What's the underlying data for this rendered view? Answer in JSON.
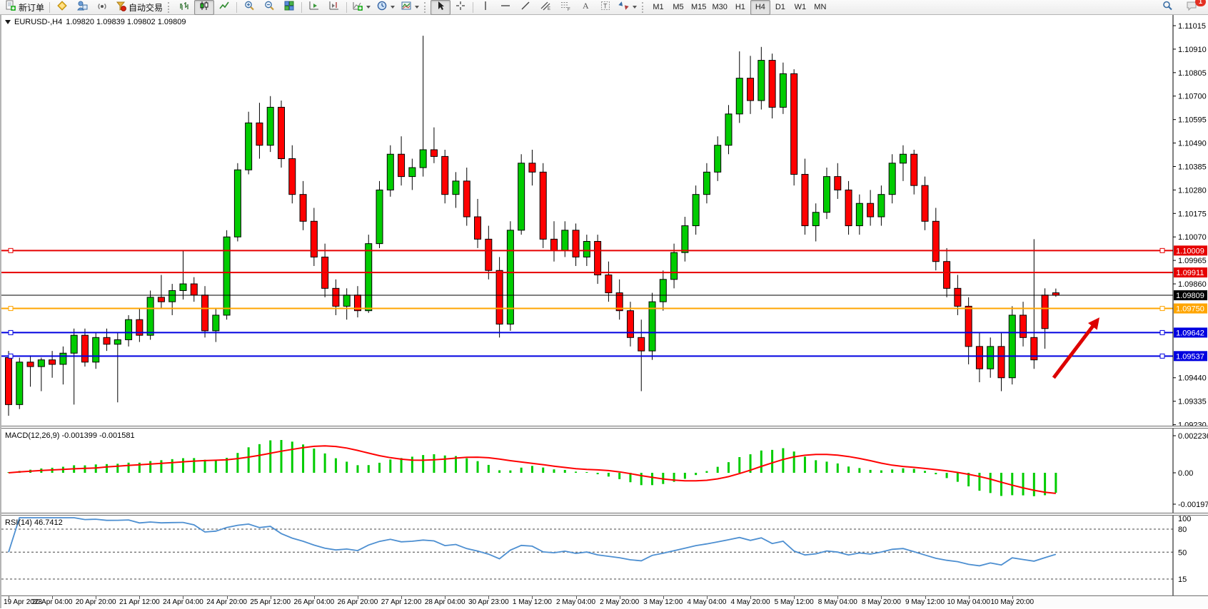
{
  "toolbar": {
    "new_order_label": "新订单",
    "autotrading_label": "自动交易",
    "timeframes": [
      "M1",
      "M5",
      "M15",
      "M30",
      "H1",
      "H4",
      "D1",
      "W1",
      "MN"
    ],
    "active_timeframe": "H4",
    "notification_count": "1"
  },
  "chart": {
    "symbol_period": "EURUSD-,H4",
    "quotes": "1.09820 1.09839 1.09802 1.09809"
  },
  "macd": {
    "label": "MACD(12,26,9) -0.001399 -0.001581",
    "axis": [
      "0.002236",
      "0.00",
      "-0.001971"
    ],
    "histogram_color": "#00cc00",
    "signal_color": "#ff0000"
  },
  "rsi": {
    "label": "RSI(14) 46.7412",
    "levels": [
      "100",
      "80",
      "50",
      "15"
    ],
    "line_color": "#4d8fd1"
  },
  "chart_data": {
    "type": "candlestick",
    "symbol": "EURUSD-",
    "timeframe": "H4",
    "bull_color": "#00cc00",
    "bear_color": "#ff0000",
    "price_ticks": [
      "1.11015",
      "1.10910",
      "1.10805",
      "1.10700",
      "1.10595",
      "1.10490",
      "1.10385",
      "1.10280",
      "1.10175",
      "1.10070",
      "1.09965",
      "1.09860",
      "1.09440",
      "1.09335",
      "1.09230"
    ],
    "hlines": [
      {
        "price": 1.10009,
        "label": "1.10009",
        "color": "#e60000",
        "width": 2,
        "handles": true
      },
      {
        "price": 1.09911,
        "label": "1.09911",
        "color": "#e60000",
        "width": 2,
        "handles": false
      },
      {
        "price": 1.0975,
        "label": "1.09750",
        "color": "#ffa500",
        "width": 2,
        "handles": true
      },
      {
        "price": 1.09642,
        "label": "1.09642",
        "color": "#0000e0",
        "width": 2,
        "handles": true
      },
      {
        "price": 1.09537,
        "label": "1.09537",
        "color": "#0000e0",
        "width": 2,
        "handles": true
      }
    ],
    "current_price": {
      "price": 1.09809,
      "label": "1.09809",
      "color": "#000000"
    },
    "annotation_arrow": {
      "color": "#dd0000",
      "tail": {
        "bar": 95.8,
        "price": 1.0944
      },
      "head": {
        "bar": 100.0,
        "price": 1.0971
      }
    },
    "x_labels": [
      "19 Apr 2023",
      "20 Apr 04:00",
      "20 Apr 20:00",
      "21 Apr 12:00",
      "24 Apr 04:00",
      "24 Apr 20:00",
      "25 Apr 12:00",
      "26 Apr 04:00",
      "26 Apr 20:00",
      "27 Apr 12:00",
      "28 Apr 04:00",
      "30 Apr 23:00",
      "1 May 12:00",
      "2 May 04:00",
      "2 May 20:00",
      "3 May 12:00",
      "4 May 04:00",
      "4 May 20:00",
      "5 May 12:00",
      "8 May 04:00",
      "8 May 20:00",
      "9 May 12:00",
      "10 May 04:00",
      "10 May 20:00"
    ],
    "candles": [
      [
        1.0953,
        1.0956,
        1.0927,
        1.0932
      ],
      [
        1.0932,
        1.0953,
        1.093,
        1.0951
      ],
      [
        1.0951,
        1.0954,
        1.094,
        1.0949
      ],
      [
        1.0949,
        1.0953,
        1.0938,
        1.0952
      ],
      [
        1.0952,
        1.0956,
        1.0944,
        1.095
      ],
      [
        1.095,
        1.0958,
        1.0941,
        1.0955
      ],
      [
        1.0955,
        1.0966,
        1.0932,
        1.0963
      ],
      [
        1.0963,
        1.0966,
        1.0949,
        1.0951
      ],
      [
        1.0951,
        1.0964,
        1.0948,
        1.0962
      ],
      [
        1.0962,
        1.0966,
        1.0956,
        1.0959
      ],
      [
        1.0959,
        1.0964,
        1.0933,
        1.0961
      ],
      [
        1.0961,
        1.0972,
        1.0958,
        1.097
      ],
      [
        1.097,
        1.0975,
        1.096,
        1.0963
      ],
      [
        1.0963,
        1.0983,
        1.0961,
        1.098
      ],
      [
        1.098,
        1.099,
        1.0975,
        1.0978
      ],
      [
        1.0978,
        1.0986,
        1.0972,
        1.0983
      ],
      [
        1.0983,
        1.1001,
        1.0979,
        1.0986
      ],
      [
        1.0986,
        1.0989,
        1.0978,
        1.0981
      ],
      [
        1.0981,
        1.0985,
        1.0962,
        1.0965
      ],
      [
        1.0965,
        1.0975,
        1.096,
        1.0972
      ],
      [
        1.0972,
        1.101,
        1.097,
        1.1007
      ],
      [
        1.1007,
        1.104,
        1.1005,
        1.1037
      ],
      [
        1.1037,
        1.1063,
        1.1035,
        1.1058
      ],
      [
        1.1058,
        1.1067,
        1.1042,
        1.1048
      ],
      [
        1.1048,
        1.107,
        1.1045,
        1.1065
      ],
      [
        1.1065,
        1.1068,
        1.1038,
        1.1042
      ],
      [
        1.1042,
        1.1048,
        1.1022,
        1.1026
      ],
      [
        1.1026,
        1.1032,
        1.101,
        1.1014
      ],
      [
        1.1014,
        1.102,
        1.0994,
        1.0998
      ],
      [
        1.0998,
        1.1004,
        1.098,
        1.0984
      ],
      [
        1.0984,
        1.0988,
        1.0972,
        1.0976
      ],
      [
        1.0976,
        1.0984,
        1.097,
        1.0981
      ],
      [
        1.0981,
        1.0985,
        1.0971,
        1.0974
      ],
      [
        1.0974,
        1.1008,
        1.0973,
        1.1004
      ],
      [
        1.1004,
        1.1032,
        1.1002,
        1.1028
      ],
      [
        1.1028,
        1.1048,
        1.1025,
        1.1044
      ],
      [
        1.1044,
        1.1052,
        1.103,
        1.1034
      ],
      [
        1.1034,
        1.1042,
        1.1028,
        1.1038
      ],
      [
        1.1038,
        1.1097,
        1.1034,
        1.1046
      ],
      [
        1.1046,
        1.1056,
        1.104,
        1.1043
      ],
      [
        1.1043,
        1.1046,
        1.1022,
        1.1026
      ],
      [
        1.1026,
        1.1036,
        1.102,
        1.1032
      ],
      [
        1.1032,
        1.1038,
        1.1012,
        1.1016
      ],
      [
        1.1016,
        1.1024,
        1.1002,
        1.1006
      ],
      [
        1.1006,
        1.1012,
        1.0988,
        1.0992
      ],
      [
        1.0992,
        1.0998,
        1.0962,
        1.0968
      ],
      [
        1.0968,
        1.1014,
        1.0965,
        1.101
      ],
      [
        1.101,
        1.1044,
        1.1008,
        1.104
      ],
      [
        1.104,
        1.1046,
        1.103,
        1.1036
      ],
      [
        1.1036,
        1.104,
        1.1002,
        1.1006
      ],
      [
        1.1006,
        1.1014,
        1.0996,
        1.1001
      ],
      [
        1.1001,
        1.1014,
        1.0998,
        1.101
      ],
      [
        1.101,
        1.1013,
        1.0994,
        1.0998
      ],
      [
        1.0998,
        1.1008,
        1.0994,
        1.1005
      ],
      [
        1.1005,
        1.1008,
        1.0986,
        1.099
      ],
      [
        1.099,
        1.0996,
        1.0978,
        1.0982
      ],
      [
        1.0982,
        1.0988,
        1.097,
        1.0974
      ],
      [
        1.0974,
        1.0978,
        1.0958,
        1.0962
      ],
      [
        1.0962,
        1.097,
        1.0938,
        1.0956
      ],
      [
        1.0956,
        1.0982,
        1.0952,
        1.0978
      ],
      [
        1.0978,
        1.0992,
        1.0974,
        1.0988
      ],
      [
        1.0988,
        1.1004,
        1.0984,
        1.1
      ],
      [
        1.1,
        1.1016,
        1.0996,
        1.1012
      ],
      [
        1.1012,
        1.103,
        1.1008,
        1.1026
      ],
      [
        1.1026,
        1.104,
        1.1022,
        1.1036
      ],
      [
        1.1036,
        1.1052,
        1.1032,
        1.1048
      ],
      [
        1.1048,
        1.1066,
        1.1044,
        1.1062
      ],
      [
        1.1062,
        1.109,
        1.1058,
        1.1078
      ],
      [
        1.1078,
        1.1088,
        1.1062,
        1.1068
      ],
      [
        1.1068,
        1.1092,
        1.1064,
        1.1086
      ],
      [
        1.1086,
        1.1089,
        1.106,
        1.1065
      ],
      [
        1.1065,
        1.1085,
        1.1062,
        1.108
      ],
      [
        1.108,
        1.1082,
        1.103,
        1.1035
      ],
      [
        1.1035,
        1.1042,
        1.1008,
        1.1012
      ],
      [
        1.1012,
        1.1022,
        1.1005,
        1.1018
      ],
      [
        1.1018,
        1.1038,
        1.1015,
        1.1034
      ],
      [
        1.1034,
        1.104,
        1.1024,
        1.1028
      ],
      [
        1.1028,
        1.1032,
        1.1008,
        1.1012
      ],
      [
        1.1012,
        1.1026,
        1.1008,
        1.1022
      ],
      [
        1.1022,
        1.1028,
        1.1012,
        1.1016
      ],
      [
        1.1016,
        1.103,
        1.1012,
        1.1026
      ],
      [
        1.1026,
        1.1044,
        1.1022,
        1.104
      ],
      [
        1.104,
        1.1048,
        1.1032,
        1.1044
      ],
      [
        1.1044,
        1.1046,
        1.1026,
        1.103
      ],
      [
        1.103,
        1.1034,
        1.101,
        1.1014
      ],
      [
        1.1014,
        1.102,
        1.0992,
        1.0996
      ],
      [
        1.0996,
        1.1002,
        1.098,
        1.0984
      ],
      [
        1.0984,
        1.099,
        1.0972,
        1.0976
      ],
      [
        1.0976,
        1.098,
        1.095,
        1.0958
      ],
      [
        1.0958,
        1.0964,
        1.0942,
        1.0948
      ],
      [
        1.0948,
        1.0962,
        1.0944,
        1.0958
      ],
      [
        1.0958,
        1.0964,
        1.0938,
        1.0944
      ],
      [
        1.0944,
        1.0976,
        1.0941,
        1.0972
      ],
      [
        1.0972,
        1.0978,
        1.0958,
        1.0962
      ],
      [
        1.0962,
        1.1006,
        1.0948,
        1.0952
      ],
      [
        1.0981,
        1.0984,
        1.0957,
        1.0966
      ],
      [
        1.0982,
        1.09839,
        1.09802,
        1.09809
      ]
    ]
  }
}
